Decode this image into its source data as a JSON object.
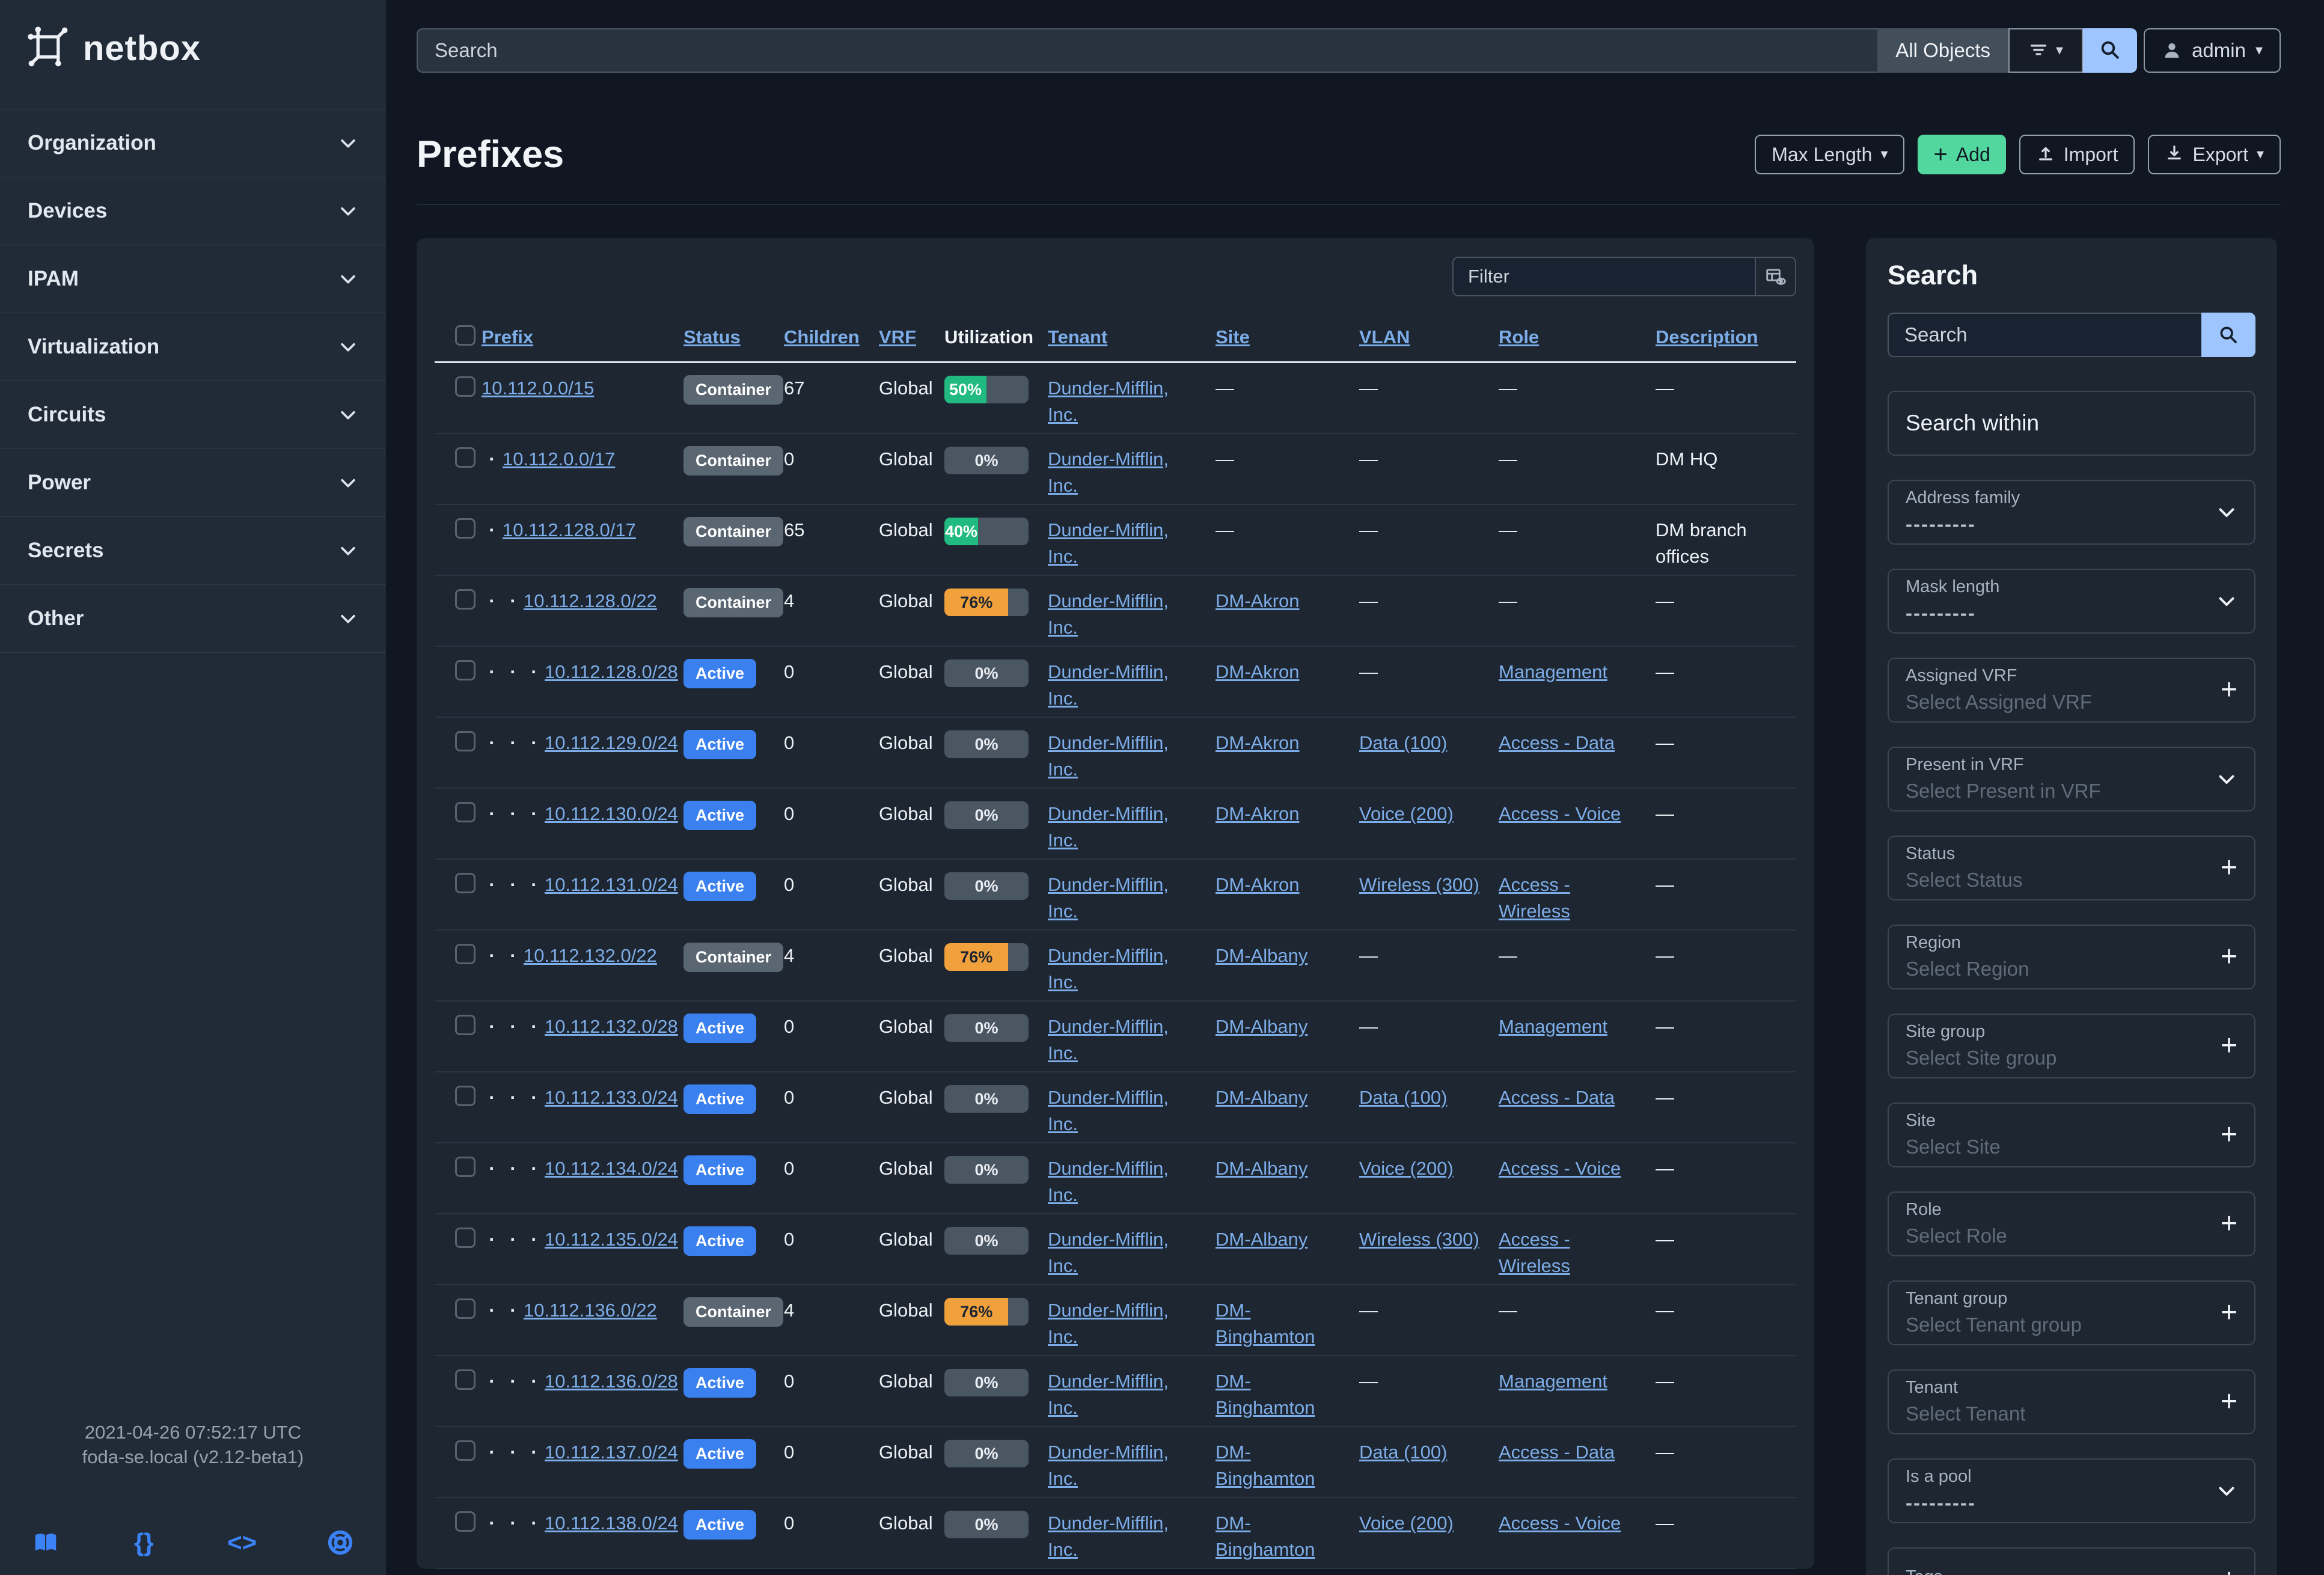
{
  "app": {
    "brand": "netbox"
  },
  "topbar": {
    "search_placeholder": "Search",
    "scope": "All Objects",
    "user": "admin"
  },
  "sidebar": {
    "items": [
      {
        "label": "Organization"
      },
      {
        "label": "Devices"
      },
      {
        "label": "IPAM"
      },
      {
        "label": "Virtualization"
      },
      {
        "label": "Circuits"
      },
      {
        "label": "Power"
      },
      {
        "label": "Secrets"
      },
      {
        "label": "Other"
      }
    ],
    "footer": {
      "time": "2021-04-26 07:52:17 UTC",
      "host": "foda-se.local (v2.12-beta1)",
      "icons": [
        "docs-book-icon",
        "api-braces-icon",
        "code-icon",
        "help-lifering-icon"
      ]
    }
  },
  "page": {
    "title": "Prefixes",
    "buttons": {
      "max_length": "Max Length",
      "add": "Add",
      "import": "Import",
      "export": "Export"
    }
  },
  "table": {
    "filter_placeholder": "Filter",
    "columns": [
      {
        "label": "Prefix",
        "sortable": true
      },
      {
        "label": "Status",
        "sortable": true
      },
      {
        "label": "Children",
        "sortable": true
      },
      {
        "label": "VRF",
        "sortable": true
      },
      {
        "label": "Utilization",
        "sortable": false
      },
      {
        "label": "Tenant",
        "sortable": true
      },
      {
        "label": "Site",
        "sortable": true
      },
      {
        "label": "VLAN",
        "sortable": true
      },
      {
        "label": "Role",
        "sortable": true
      },
      {
        "label": "Description",
        "sortable": true
      }
    ],
    "rows": [
      {
        "prefix": "10.112.0.0/15",
        "depth": 0,
        "status": "Container",
        "sv": "container",
        "children": "67",
        "vrf": "Global",
        "util": 50,
        "uv": "green",
        "tenant": "Dunder-Mifflin, Inc.",
        "site": "",
        "vlan": "",
        "role": "",
        "desc": ""
      },
      {
        "prefix": "10.112.0.0/17",
        "depth": 1,
        "status": "Container",
        "sv": "container",
        "children": "0",
        "vrf": "Global",
        "util": 0,
        "uv": "",
        "tenant": "Dunder-Mifflin, Inc.",
        "site": "",
        "vlan": "",
        "role": "",
        "desc": "DM HQ"
      },
      {
        "prefix": "10.112.128.0/17",
        "depth": 1,
        "status": "Container",
        "sv": "container",
        "children": "65",
        "vrf": "Global",
        "util": 40,
        "uv": "green",
        "tenant": "Dunder-Mifflin, Inc.",
        "site": "",
        "vlan": "",
        "role": "",
        "desc": "DM branch offices"
      },
      {
        "prefix": "10.112.128.0/22",
        "depth": 2,
        "status": "Container",
        "sv": "container",
        "children": "4",
        "vrf": "Global",
        "util": 76,
        "uv": "orange",
        "tenant": "Dunder-Mifflin, Inc.",
        "site": "DM-Akron",
        "vlan": "",
        "role": "",
        "desc": ""
      },
      {
        "prefix": "10.112.128.0/28",
        "depth": 3,
        "status": "Active",
        "sv": "active",
        "children": "0",
        "vrf": "Global",
        "util": 0,
        "uv": "",
        "tenant": "Dunder-Mifflin, Inc.",
        "site": "DM-Akron",
        "vlan": "",
        "role": "Management",
        "desc": ""
      },
      {
        "prefix": "10.112.129.0/24",
        "depth": 3,
        "status": "Active",
        "sv": "active",
        "children": "0",
        "vrf": "Global",
        "util": 0,
        "uv": "",
        "tenant": "Dunder-Mifflin, Inc.",
        "site": "DM-Akron",
        "vlan": "Data (100)",
        "role": "Access - Data",
        "desc": ""
      },
      {
        "prefix": "10.112.130.0/24",
        "depth": 3,
        "status": "Active",
        "sv": "active",
        "children": "0",
        "vrf": "Global",
        "util": 0,
        "uv": "",
        "tenant": "Dunder-Mifflin, Inc.",
        "site": "DM-Akron",
        "vlan": "Voice (200)",
        "role": "Access - Voice",
        "desc": ""
      },
      {
        "prefix": "10.112.131.0/24",
        "depth": 3,
        "status": "Active",
        "sv": "active",
        "children": "0",
        "vrf": "Global",
        "util": 0,
        "uv": "",
        "tenant": "Dunder-Mifflin, Inc.",
        "site": "DM-Akron",
        "vlan": "Wireless (300)",
        "role": "Access - Wireless",
        "desc": ""
      },
      {
        "prefix": "10.112.132.0/22",
        "depth": 2,
        "status": "Container",
        "sv": "container",
        "children": "4",
        "vrf": "Global",
        "util": 76,
        "uv": "orange",
        "tenant": "Dunder-Mifflin, Inc.",
        "site": "DM-Albany",
        "vlan": "",
        "role": "",
        "desc": ""
      },
      {
        "prefix": "10.112.132.0/28",
        "depth": 3,
        "status": "Active",
        "sv": "active",
        "children": "0",
        "vrf": "Global",
        "util": 0,
        "uv": "",
        "tenant": "Dunder-Mifflin, Inc.",
        "site": "DM-Albany",
        "vlan": "",
        "role": "Management",
        "desc": ""
      },
      {
        "prefix": "10.112.133.0/24",
        "depth": 3,
        "status": "Active",
        "sv": "active",
        "children": "0",
        "vrf": "Global",
        "util": 0,
        "uv": "",
        "tenant": "Dunder-Mifflin, Inc.",
        "site": "DM-Albany",
        "vlan": "Data (100)",
        "role": "Access - Data",
        "desc": ""
      },
      {
        "prefix": "10.112.134.0/24",
        "depth": 3,
        "status": "Active",
        "sv": "active",
        "children": "0",
        "vrf": "Global",
        "util": 0,
        "uv": "",
        "tenant": "Dunder-Mifflin, Inc.",
        "site": "DM-Albany",
        "vlan": "Voice (200)",
        "role": "Access - Voice",
        "desc": ""
      },
      {
        "prefix": "10.112.135.0/24",
        "depth": 3,
        "status": "Active",
        "sv": "active",
        "children": "0",
        "vrf": "Global",
        "util": 0,
        "uv": "",
        "tenant": "Dunder-Mifflin, Inc.",
        "site": "DM-Albany",
        "vlan": "Wireless (300)",
        "role": "Access - Wireless",
        "desc": ""
      },
      {
        "prefix": "10.112.136.0/22",
        "depth": 2,
        "status": "Container",
        "sv": "container",
        "children": "4",
        "vrf": "Global",
        "util": 76,
        "uv": "orange",
        "tenant": "Dunder-Mifflin, Inc.",
        "site": "DM-Binghamton",
        "vlan": "",
        "role": "",
        "desc": ""
      },
      {
        "prefix": "10.112.136.0/28",
        "depth": 3,
        "status": "Active",
        "sv": "active",
        "children": "0",
        "vrf": "Global",
        "util": 0,
        "uv": "",
        "tenant": "Dunder-Mifflin, Inc.",
        "site": "DM-Binghamton",
        "vlan": "",
        "role": "Management",
        "desc": ""
      },
      {
        "prefix": "10.112.137.0/24",
        "depth": 3,
        "status": "Active",
        "sv": "active",
        "children": "0",
        "vrf": "Global",
        "util": 0,
        "uv": "",
        "tenant": "Dunder-Mifflin, Inc.",
        "site": "DM-Binghamton",
        "vlan": "Data (100)",
        "role": "Access - Data",
        "desc": ""
      },
      {
        "prefix": "10.112.138.0/24",
        "depth": 3,
        "status": "Active",
        "sv": "active",
        "children": "0",
        "vrf": "Global",
        "util": 0,
        "uv": "",
        "tenant": "Dunder-Mifflin, Inc.",
        "site": "DM-Binghamton",
        "vlan": "Voice (200)",
        "role": "Access - Voice",
        "desc": ""
      }
    ]
  },
  "filter_panel": {
    "title": "Search",
    "search_placeholder": "Search",
    "within_label": "Search within",
    "fields": [
      {
        "label": "Address family",
        "value": "---------",
        "control": "select"
      },
      {
        "label": "Mask length",
        "value": "---------",
        "control": "select"
      },
      {
        "label": "Assigned VRF",
        "value": "Select Assigned VRF",
        "control": "add"
      },
      {
        "label": "Present in VRF",
        "value": "Select Present in VRF",
        "control": "select"
      },
      {
        "label": "Status",
        "value": "Select Status",
        "control": "add"
      },
      {
        "label": "Region",
        "value": "Select Region",
        "control": "add"
      },
      {
        "label": "Site group",
        "value": "Select Site group",
        "control": "add"
      },
      {
        "label": "Site",
        "value": "Select Site",
        "control": "add"
      },
      {
        "label": "Role",
        "value": "Select Role",
        "control": "add"
      },
      {
        "label": "Tenant group",
        "value": "Select Tenant group",
        "control": "add"
      },
      {
        "label": "Tenant",
        "value": "Select Tenant",
        "control": "add"
      },
      {
        "label": "Is a pool",
        "value": "---------",
        "control": "select"
      },
      {
        "label": "Tags",
        "value": "",
        "control": "add"
      }
    ]
  },
  "colors": {
    "accent_blue": "#3b82f6",
    "link_blue": "#7dade8",
    "status_active": "#3a80ee",
    "status_container": "#5a6671",
    "util_green": "#21ba81",
    "util_orange": "#f0a13c",
    "add_green": "#52d89e",
    "search_button_blue": "#9ec5fe",
    "sidebar_bg": "#212b38",
    "card_bg": "#1d2631",
    "page_bg": "#101722"
  }
}
